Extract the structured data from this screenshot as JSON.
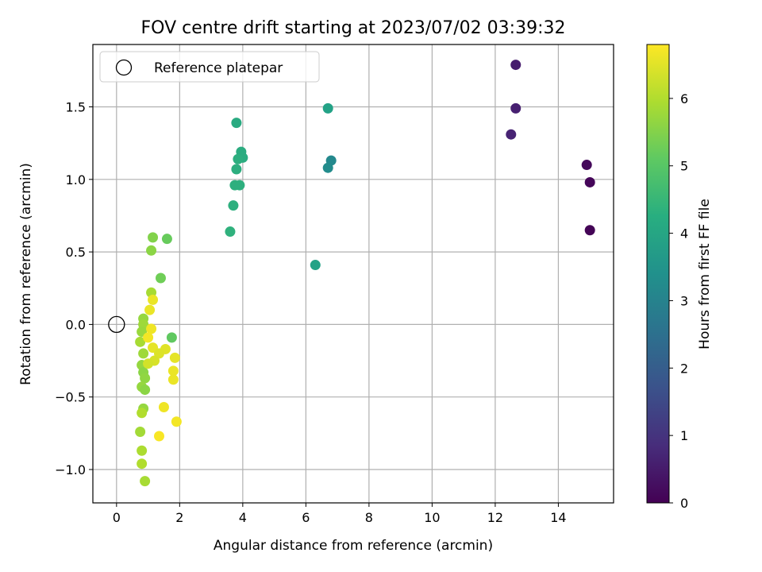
{
  "chart_data": {
    "type": "scatter",
    "title": "FOV centre drift starting at 2023/07/02 03:39:32",
    "xlabel": "Angular distance from reference (arcmin)",
    "ylabel": "Rotation from reference (arcmin)",
    "xlim": [
      -0.75,
      15.75
    ],
    "ylim": [
      -1.23,
      1.93
    ],
    "xticks": [
      0,
      2,
      4,
      6,
      8,
      10,
      12,
      14
    ],
    "yticks": [
      -1.0,
      -0.5,
      0.0,
      0.5,
      1.0,
      1.5
    ],
    "xtick_labels": [
      "0",
      "2",
      "4",
      "6",
      "8",
      "10",
      "12",
      "14"
    ],
    "ytick_labels": [
      "−1.0",
      "−0.5",
      "0.0",
      "0.5",
      "1.0",
      "1.5"
    ],
    "grid": true,
    "colormap": "viridis",
    "colorbar": {
      "label": "Hours from first FF file",
      "range": [
        0,
        6.8
      ],
      "ticks": [
        0,
        1,
        2,
        3,
        4,
        5,
        6
      ],
      "tick_labels": [
        "0",
        "1",
        "2",
        "3",
        "4",
        "5",
        "6"
      ]
    },
    "legend": {
      "position": "top-left",
      "entries": [
        "Reference platepar"
      ]
    },
    "reference": {
      "x": 0,
      "y": 0,
      "label": "Reference platepar"
    },
    "points": [
      {
        "x": 15.0,
        "y": 0.65,
        "h": 0.05
      },
      {
        "x": 15.0,
        "y": 0.98,
        "h": 0.1
      },
      {
        "x": 14.9,
        "y": 1.1,
        "h": 0.15
      },
      {
        "x": 12.65,
        "y": 1.79,
        "h": 0.55
      },
      {
        "x": 12.65,
        "y": 1.49,
        "h": 0.6
      },
      {
        "x": 12.5,
        "y": 1.31,
        "h": 0.65
      },
      {
        "x": 6.8,
        "y": 1.13,
        "h": 3.2
      },
      {
        "x": 6.7,
        "y": 1.08,
        "h": 3.3
      },
      {
        "x": 6.7,
        "y": 1.49,
        "h": 3.9
      },
      {
        "x": 6.3,
        "y": 0.41,
        "h": 3.9
      },
      {
        "x": 3.8,
        "y": 1.39,
        "h": 4.15
      },
      {
        "x": 3.95,
        "y": 1.19,
        "h": 4.2
      },
      {
        "x": 4.0,
        "y": 1.15,
        "h": 4.2
      },
      {
        "x": 3.85,
        "y": 1.14,
        "h": 4.25
      },
      {
        "x": 3.8,
        "y": 1.07,
        "h": 4.25
      },
      {
        "x": 3.9,
        "y": 0.96,
        "h": 4.3
      },
      {
        "x": 3.75,
        "y": 0.96,
        "h": 4.3
      },
      {
        "x": 3.7,
        "y": 0.82,
        "h": 4.3
      },
      {
        "x": 3.6,
        "y": 0.64,
        "h": 4.35
      },
      {
        "x": 1.6,
        "y": 0.59,
        "h": 5.2
      },
      {
        "x": 1.15,
        "y": 0.6,
        "h": 5.5
      },
      {
        "x": 1.1,
        "y": 0.51,
        "h": 5.6
      },
      {
        "x": 1.4,
        "y": 0.32,
        "h": 5.3
      },
      {
        "x": 1.1,
        "y": 0.22,
        "h": 5.9
      },
      {
        "x": 1.75,
        "y": -0.09,
        "h": 5.1
      },
      {
        "x": 0.85,
        "y": 0.04,
        "h": 5.7
      },
      {
        "x": 0.85,
        "y": 0.0,
        "h": 5.8
      },
      {
        "x": 0.8,
        "y": -0.05,
        "h": 5.75
      },
      {
        "x": 0.75,
        "y": -0.12,
        "h": 5.9
      },
      {
        "x": 0.85,
        "y": -0.2,
        "h": 5.8
      },
      {
        "x": 0.8,
        "y": -0.28,
        "h": 5.7
      },
      {
        "x": 0.85,
        "y": -0.33,
        "h": 5.6
      },
      {
        "x": 0.9,
        "y": -0.37,
        "h": 5.65
      },
      {
        "x": 0.8,
        "y": -0.43,
        "h": 5.7
      },
      {
        "x": 0.9,
        "y": -0.45,
        "h": 5.6
      },
      {
        "x": 0.85,
        "y": -0.58,
        "h": 5.7
      },
      {
        "x": 0.8,
        "y": -0.61,
        "h": 6.0
      },
      {
        "x": 0.75,
        "y": -0.74,
        "h": 5.85
      },
      {
        "x": 0.8,
        "y": -0.87,
        "h": 5.95
      },
      {
        "x": 0.8,
        "y": -0.96,
        "h": 6.0
      },
      {
        "x": 0.9,
        "y": -1.08,
        "h": 5.9
      },
      {
        "x": 1.15,
        "y": 0.17,
        "h": 6.6
      },
      {
        "x": 1.05,
        "y": 0.1,
        "h": 6.6
      },
      {
        "x": 1.1,
        "y": -0.03,
        "h": 6.65
      },
      {
        "x": 1.0,
        "y": -0.09,
        "h": 6.7
      },
      {
        "x": 1.15,
        "y": -0.16,
        "h": 6.55
      },
      {
        "x": 1.55,
        "y": -0.17,
        "h": 6.5
      },
      {
        "x": 1.35,
        "y": -0.2,
        "h": 6.45
      },
      {
        "x": 1.2,
        "y": -0.25,
        "h": 6.4
      },
      {
        "x": 1.0,
        "y": -0.27,
        "h": 6.35
      },
      {
        "x": 1.85,
        "y": -0.23,
        "h": 6.55
      },
      {
        "x": 1.8,
        "y": -0.32,
        "h": 6.6
      },
      {
        "x": 1.8,
        "y": -0.38,
        "h": 6.6
      },
      {
        "x": 1.5,
        "y": -0.57,
        "h": 6.65
      },
      {
        "x": 1.9,
        "y": -0.67,
        "h": 6.7
      },
      {
        "x": 1.35,
        "y": -0.77,
        "h": 6.75
      }
    ]
  }
}
